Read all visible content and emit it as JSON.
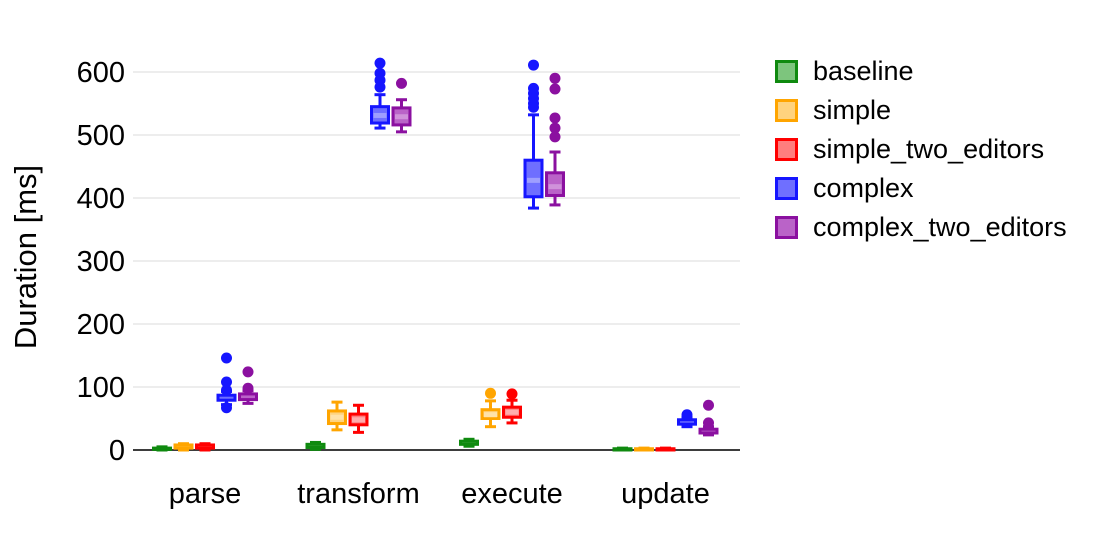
{
  "chart_data": {
    "type": "boxplot",
    "title": "",
    "ylabel": "Duration [ms]",
    "xlabel": "",
    "ylim": [
      0,
      620
    ],
    "yticks": [
      0,
      100,
      200,
      300,
      400,
      500,
      600
    ],
    "grid": true,
    "legend_position": "right",
    "axis_color": "#3d3d3d",
    "gridline_color": "#ededed",
    "categories": [
      "parse",
      "transform",
      "execute",
      "update"
    ],
    "series": [
      {
        "name": "baseline",
        "stroke": "#0f8a0f",
        "fill": "#7dc57d",
        "median_fill": "#a9dca9",
        "boxes": [
          {
            "category": "parse",
            "low": 0,
            "q1": 1,
            "median": 2,
            "q3": 3,
            "high": 5,
            "outliers": []
          },
          {
            "category": "transform",
            "low": 1,
            "q1": 4,
            "median": 6,
            "q3": 9,
            "high": 12,
            "outliers": []
          },
          {
            "category": "execute",
            "low": 6,
            "q1": 9,
            "median": 11,
            "q3": 14,
            "high": 17,
            "outliers": []
          },
          {
            "category": "update",
            "low": 0,
            "q1": 0,
            "median": 1,
            "q3": 2,
            "high": 3,
            "outliers": []
          }
        ]
      },
      {
        "name": "simple",
        "stroke": "#ffa500",
        "fill": "#ffd37e",
        "median_fill": "#ffe2a9",
        "boxes": [
          {
            "category": "parse",
            "low": 0,
            "q1": 3,
            "median": 5,
            "q3": 8,
            "high": 10,
            "outliers": []
          },
          {
            "category": "transform",
            "low": 32,
            "q1": 42,
            "median": 52,
            "q3": 62,
            "high": 76,
            "outliers": []
          },
          {
            "category": "execute",
            "low": 37,
            "q1": 50,
            "median": 56,
            "q3": 64,
            "high": 78,
            "outliers": [
              90
            ]
          },
          {
            "category": "update",
            "low": 0,
            "q1": 0,
            "median": 1,
            "q3": 2,
            "high": 3,
            "outliers": []
          }
        ]
      },
      {
        "name": "simple_two_editors",
        "stroke": "#ff0000",
        "fill": "#ff7e7e",
        "median_fill": "#ffadad",
        "boxes": [
          {
            "category": "parse",
            "low": 0,
            "q1": 3,
            "median": 5,
            "q3": 8,
            "high": 10,
            "outliers": []
          },
          {
            "category": "transform",
            "low": 28,
            "q1": 40,
            "median": 48,
            "q3": 57,
            "high": 71,
            "outliers": []
          },
          {
            "category": "execute",
            "low": 43,
            "q1": 52,
            "median": 60,
            "q3": 68,
            "high": 79,
            "outliers": [
              89
            ]
          },
          {
            "category": "update",
            "low": 0,
            "q1": 0,
            "median": 1,
            "q3": 2,
            "high": 3,
            "outliers": []
          }
        ]
      },
      {
        "name": "complex",
        "stroke": "#1616ff",
        "fill": "#6f6fff",
        "median_fill": "#9e9eff",
        "boxes": [
          {
            "category": "parse",
            "low": 72,
            "q1": 79,
            "median": 83,
            "q3": 87,
            "high": 93,
            "outliers": [
              146,
              108,
              95,
              67
            ]
          },
          {
            "category": "transform",
            "low": 511,
            "q1": 519,
            "median": 531,
            "q3": 545,
            "high": 564,
            "outliers": [
              614,
              598,
              587,
              576
            ]
          },
          {
            "category": "execute",
            "low": 384,
            "q1": 402,
            "median": 428,
            "q3": 460,
            "high": 532,
            "outliers": [
              611,
              574,
              566,
              558,
              550,
              544
            ]
          },
          {
            "category": "update",
            "low": 37,
            "q1": 41,
            "median": 44,
            "q3": 48,
            "high": 52,
            "outliers": [
              56
            ]
          }
        ]
      },
      {
        "name": "complex_two_editors",
        "stroke": "#8b10a0",
        "fill": "#ba63c8",
        "median_fill": "#d092da",
        "boxes": [
          {
            "category": "parse",
            "low": 74,
            "q1": 80,
            "median": 84,
            "q3": 89,
            "high": 94,
            "outliers": [
              124,
              98
            ]
          },
          {
            "category": "transform",
            "low": 505,
            "q1": 516,
            "median": 529,
            "q3": 543,
            "high": 556,
            "outliers": [
              582
            ]
          },
          {
            "category": "execute",
            "low": 389,
            "q1": 404,
            "median": 418,
            "q3": 440,
            "high": 473,
            "outliers": [
              590,
              573,
              527,
              511,
              497
            ]
          },
          {
            "category": "update",
            "low": 24,
            "q1": 27,
            "median": 30,
            "q3": 33,
            "high": 37,
            "outliers": [
              71,
              43
            ]
          }
        ]
      }
    ]
  }
}
